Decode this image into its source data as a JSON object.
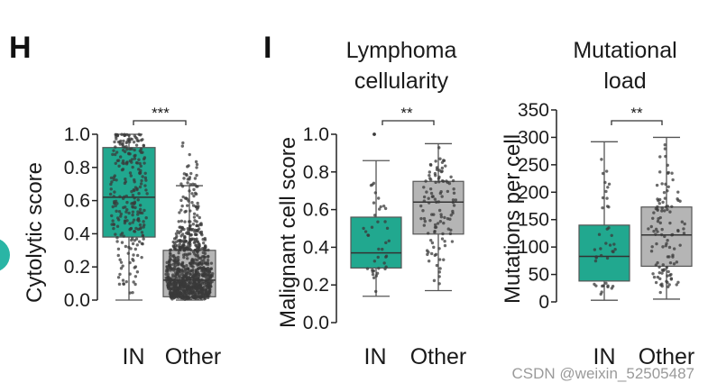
{
  "colors": {
    "in_fill": "#21a88f",
    "other_fill": "#b5b5b5",
    "dot": "#3a3a3a",
    "line": "#555555",
    "accent_circle": "#2ab5a5"
  },
  "panels": {
    "h_letter": "H",
    "i_letter": "I"
  },
  "watermark": "CSDN @weixin_52505487",
  "chart_data": [
    {
      "type": "box",
      "panel": "H",
      "title": "",
      "ylabel": "Cytolytic score",
      "ylim": [
        0,
        1.0
      ],
      "yticks": [
        0.0,
        0.2,
        0.4,
        0.6,
        0.8,
        1.0
      ],
      "ytick_labels": [
        "0.0",
        "0.2",
        "0.4",
        "0.6",
        "0.8",
        "1.0"
      ],
      "categories": [
        "IN",
        "Other"
      ],
      "significance": "***",
      "boxes": [
        {
          "name": "IN",
          "whisker_low": 0.0,
          "q1": 0.38,
          "median": 0.62,
          "q3": 0.92,
          "whisker_high": 1.0,
          "n_points": 260
        },
        {
          "name": "Other",
          "whisker_low": 0.0,
          "q1": 0.02,
          "median": 0.12,
          "q3": 0.3,
          "whisker_high": 0.69,
          "outliers_to": 1.0,
          "n_points": 900
        }
      ]
    },
    {
      "type": "box",
      "panel": "I",
      "title": "Lymphoma cellularity",
      "title_lines": [
        "Lymphoma",
        "cellularity"
      ],
      "ylabel": "Malignant cell score",
      "ylim": [
        0,
        1.0
      ],
      "yticks": [
        0.0,
        0.2,
        0.4,
        0.6,
        0.8,
        1.0
      ],
      "ytick_labels": [
        "0.0",
        "0.2",
        "0.4",
        "0.6",
        "0.8",
        "1.0"
      ],
      "categories": [
        "IN",
        "Other"
      ],
      "significance": "**",
      "boxes": [
        {
          "name": "IN",
          "whisker_low": 0.14,
          "q1": 0.29,
          "median": 0.37,
          "q3": 0.56,
          "whisker_high": 0.86,
          "outliers": [
            1.0
          ],
          "n_points": 40
        },
        {
          "name": "Other",
          "whisker_low": 0.17,
          "q1": 0.47,
          "median": 0.64,
          "q3": 0.75,
          "whisker_high": 0.95,
          "n_points": 110
        }
      ]
    },
    {
      "type": "box",
      "panel": "I",
      "title": "Mutational load",
      "title_lines": [
        "Mutational",
        "load"
      ],
      "ylabel": "Mutations per cell",
      "ylim": [
        0,
        350
      ],
      "yticks": [
        0,
        50,
        100,
        150,
        200,
        250,
        300,
        350
      ],
      "ytick_labels": [
        "0",
        "50",
        "100",
        "150",
        "200",
        "250",
        "300",
        "350"
      ],
      "categories": [
        "IN",
        "Other"
      ],
      "significance": "**",
      "boxes": [
        {
          "name": "IN",
          "whisker_low": 3,
          "q1": 38,
          "median": 83,
          "q3": 140,
          "whisker_high": 292,
          "n_points": 40
        },
        {
          "name": "Other",
          "whisker_low": 5,
          "q1": 65,
          "median": 122,
          "q3": 173,
          "whisker_high": 300,
          "n_points": 110
        }
      ]
    }
  ]
}
